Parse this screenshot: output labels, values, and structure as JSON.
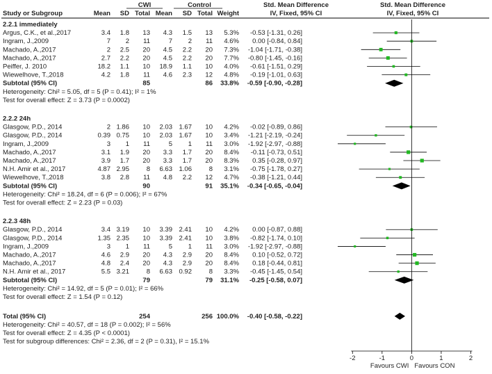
{
  "chart_data": {
    "type": "forest",
    "header": {
      "group_cwi": "CWI",
      "group_control": "Control",
      "effect_title": "Std. Mean Difference",
      "method": "IV, Fixed, 95% CI",
      "method_plot": "IV, Fixed, 95% CI",
      "cols": [
        "Study or Subgroup",
        "Mean",
        "SD",
        "Total",
        "Mean",
        "SD",
        "Total",
        "Weight"
      ]
    },
    "subgroups": [
      {
        "title": "2.2.1 immediately",
        "studies": [
          {
            "study": "Argus, C.K., et al.,2017",
            "cwi_mean": "3.4",
            "cwi_sd": "1.8",
            "cwi_n": "13",
            "ctl_mean": "4.3",
            "ctl_sd": "1.5",
            "ctl_n": "13",
            "weight": "5.3%",
            "ci_text": "-0.53 [-1.31, 0.26]",
            "smd": -0.53,
            "lo": -1.31,
            "hi": 0.26
          },
          {
            "study": "Ingram, J.,2009",
            "cwi_mean": "7",
            "cwi_sd": "2",
            "cwi_n": "11",
            "ctl_mean": "7",
            "ctl_sd": "2",
            "ctl_n": "11",
            "weight": "4.6%",
            "ci_text": "0.00 [-0.84, 0.84]",
            "smd": 0.0,
            "lo": -0.84,
            "hi": 0.84
          },
          {
            "study": "Machado, A.,2017",
            "cwi_mean": "2",
            "cwi_sd": "2.5",
            "cwi_n": "20",
            "ctl_mean": "4.5",
            "ctl_sd": "2.2",
            "ctl_n": "20",
            "weight": "7.3%",
            "ci_text": "-1.04 [-1.71, -0.38]",
            "smd": -1.04,
            "lo": -1.71,
            "hi": -0.38
          },
          {
            "study": "Machado, A.,2017",
            "cwi_mean": "2.7",
            "cwi_sd": "2.2",
            "cwi_n": "20",
            "ctl_mean": "4.5",
            "ctl_sd": "2.2",
            "ctl_n": "20",
            "weight": "7.7%",
            "ci_text": "-0.80 [-1.45, -0.16]",
            "smd": -0.8,
            "lo": -1.45,
            "hi": -0.16
          },
          {
            "study": "Peiffer, J. 2010",
            "cwi_mean": "18.2",
            "cwi_sd": "1.1",
            "cwi_n": "10",
            "ctl_mean": "18.9",
            "ctl_sd": "1.1",
            "ctl_n": "10",
            "weight": "4.0%",
            "ci_text": "-0.61 [-1.51, 0.29]",
            "smd": -0.61,
            "lo": -1.51,
            "hi": 0.29
          },
          {
            "study": "Wiewelhove, T.,2018",
            "cwi_mean": "4.2",
            "cwi_sd": "1.8",
            "cwi_n": "11",
            "ctl_mean": "4.6",
            "ctl_sd": "2.3",
            "ctl_n": "12",
            "weight": "4.8%",
            "ci_text": "-0.19 [-1.01, 0.63]",
            "smd": -0.19,
            "lo": -1.01,
            "hi": 0.63
          }
        ],
        "subtotal": {
          "label": "Subtotal (95% CI)",
          "cwi_n": "85",
          "ctl_n": "86",
          "weight": "33.8%",
          "ci_text": "-0.59 [-0.90, -0.28]",
          "smd": -0.59,
          "lo": -0.9,
          "hi": -0.28
        },
        "heterogeneity": "Heterogeneity: Chi² = 5.05, df = 5 (P = 0.41); I² = 1%",
        "overall_test": "Test for overall effect: Z = 3.73 (P = 0.0002)"
      },
      {
        "title": "2.2.2 24h",
        "studies": [
          {
            "study": "Glasgow, P.D., 2014",
            "cwi_mean": "2",
            "cwi_sd": "1.86",
            "cwi_n": "10",
            "ctl_mean": "2.03",
            "ctl_sd": "1.67",
            "ctl_n": "10",
            "weight": "4.2%",
            "ci_text": "-0.02 [-0.89, 0.86]",
            "smd": -0.02,
            "lo": -0.89,
            "hi": 0.86
          },
          {
            "study": "Glasgow, P.D., 2014",
            "cwi_mean": "0.39",
            "cwi_sd": "0.75",
            "cwi_n": "10",
            "ctl_mean": "2.03",
            "ctl_sd": "1.67",
            "ctl_n": "10",
            "weight": "3.4%",
            "ci_text": "-1.21 [-2.19, -0.24]",
            "smd": -1.21,
            "lo": -2.19,
            "hi": -0.24
          },
          {
            "study": "Ingram, J.,2009",
            "cwi_mean": "3",
            "cwi_sd": "1",
            "cwi_n": "11",
            "ctl_mean": "5",
            "ctl_sd": "1",
            "ctl_n": "11",
            "weight": "3.0%",
            "ci_text": "-1.92 [-2.97, -0.88]",
            "smd": -1.92,
            "lo": -2.97,
            "hi": -0.88
          },
          {
            "study": "Machado, A.,2017",
            "cwi_mean": "3.1",
            "cwi_sd": "1.9",
            "cwi_n": "20",
            "ctl_mean": "3.3",
            "ctl_sd": "1.7",
            "ctl_n": "20",
            "weight": "8.4%",
            "ci_text": "-0.11 [-0.73, 0.51]",
            "smd": -0.11,
            "lo": -0.73,
            "hi": 0.51
          },
          {
            "study": "Machado, A.,2017",
            "cwi_mean": "3.9",
            "cwi_sd": "1.7",
            "cwi_n": "20",
            "ctl_mean": "3.3",
            "ctl_sd": "1.7",
            "ctl_n": "20",
            "weight": "8.3%",
            "ci_text": "0.35 [-0.28, 0.97]",
            "smd": 0.35,
            "lo": -0.28,
            "hi": 0.97
          },
          {
            "study": "N.H. Amir et al., 2017",
            "cwi_mean": "4.87",
            "cwi_sd": "2.95",
            "cwi_n": "8",
            "ctl_mean": "6.63",
            "ctl_sd": "1.06",
            "ctl_n": "8",
            "weight": "3.1%",
            "ci_text": "-0.75 [-1.78, 0.27]",
            "smd": -0.75,
            "lo": -1.78,
            "hi": 0.27
          },
          {
            "study": "Wiewelhove, T.,2018",
            "cwi_mean": "3.8",
            "cwi_sd": "2.8",
            "cwi_n": "11",
            "ctl_mean": "4.8",
            "ctl_sd": "2.2",
            "ctl_n": "12",
            "weight": "4.7%",
            "ci_text": "-0.38 [-1.21, 0.44]",
            "smd": -0.38,
            "lo": -1.21,
            "hi": 0.44
          }
        ],
        "subtotal": {
          "label": "Subtotal (95% CI)",
          "cwi_n": "90",
          "ctl_n": "91",
          "weight": "35.1%",
          "ci_text": "-0.34 [-0.65, -0.04]",
          "smd": -0.34,
          "lo": -0.65,
          "hi": -0.04
        },
        "heterogeneity": "Heterogeneity: Chi² = 18.24, df = 6 (P = 0.006); I² = 67%",
        "overall_test": "Test for overall effect: Z = 2.23 (P = 0.03)"
      },
      {
        "title": "2.2.3 48h",
        "studies": [
          {
            "study": "Glasgow, P.D., 2014",
            "cwi_mean": "3.4",
            "cwi_sd": "3.19",
            "cwi_n": "10",
            "ctl_mean": "3.39",
            "ctl_sd": "2.41",
            "ctl_n": "10",
            "weight": "4.2%",
            "ci_text": "0.00 [-0.87, 0.88]",
            "smd": 0.0,
            "lo": -0.87,
            "hi": 0.88
          },
          {
            "study": "Glasgow, P.D., 2014",
            "cwi_mean": "1.35",
            "cwi_sd": "2.35",
            "cwi_n": "10",
            "ctl_mean": "3.39",
            "ctl_sd": "2.41",
            "ctl_n": "10",
            "weight": "3.8%",
            "ci_text": "-0.82 [-1.74, 0.10]",
            "smd": -0.82,
            "lo": -1.74,
            "hi": 0.1
          },
          {
            "study": "Ingram, J.,2009",
            "cwi_mean": "3",
            "cwi_sd": "1",
            "cwi_n": "11",
            "ctl_mean": "5",
            "ctl_sd": "1",
            "ctl_n": "11",
            "weight": "3.0%",
            "ci_text": "-1.92 [-2.97, -0.88]",
            "smd": -1.92,
            "lo": -2.97,
            "hi": -0.88
          },
          {
            "study": "Machado, A.,2017",
            "cwi_mean": "4.6",
            "cwi_sd": "2.9",
            "cwi_n": "20",
            "ctl_mean": "4.3",
            "ctl_sd": "2.9",
            "ctl_n": "20",
            "weight": "8.4%",
            "ci_text": "0.10 [-0.52, 0.72]",
            "smd": 0.1,
            "lo": -0.52,
            "hi": 0.72
          },
          {
            "study": "Machado, A.,2017",
            "cwi_mean": "4.8",
            "cwi_sd": "2.4",
            "cwi_n": "20",
            "ctl_mean": "4.3",
            "ctl_sd": "2.9",
            "ctl_n": "20",
            "weight": "8.4%",
            "ci_text": "0.18 [-0.44, 0.81]",
            "smd": 0.18,
            "lo": -0.44,
            "hi": 0.81
          },
          {
            "study": "N.H. Amir et al., 2017",
            "cwi_mean": "5.5",
            "cwi_sd": "3.21",
            "cwi_n": "8",
            "ctl_mean": "6.63",
            "ctl_sd": "0.92",
            "ctl_n": "8",
            "weight": "3.3%",
            "ci_text": "-0.45 [-1.45, 0.54]",
            "smd": -0.45,
            "lo": -1.45,
            "hi": 0.54
          }
        ],
        "subtotal": {
          "label": "Subtotal (95% CI)",
          "cwi_n": "79",
          "ctl_n": "79",
          "weight": "31.1%",
          "ci_text": "-0.25 [-0.58, 0.07]",
          "smd": -0.25,
          "lo": -0.58,
          "hi": 0.07
        },
        "heterogeneity": "Heterogeneity: Chi² = 14.92, df = 5 (P = 0.01); I² = 66%",
        "overall_test": "Test for overall effect: Z = 1.54 (P = 0.12)"
      }
    ],
    "total": {
      "label": "Total (95% CI)",
      "cwi_n": "254",
      "ctl_n": "256",
      "weight": "100.0%",
      "ci_text": "-0.40 [-0.58, -0.22]",
      "smd": -0.4,
      "lo": -0.58,
      "hi": -0.22
    },
    "total_heterogeneity": "Heterogeneity: Chi² = 40.57, df = 18 (P = 0.002); I² = 56%",
    "total_overall_test": "Test for overall effect: Z = 4.35 (P < 0.0001)",
    "subgroup_differences": "Test for subgroup differences: Chi² = 2.36, df = 2 (P = 0.31), I² = 15.1%",
    "axis": {
      "xlim": [
        -2.5,
        2.6
      ],
      "ticks": [
        -2,
        -1,
        0,
        1,
        2
      ],
      "tick_labels": [
        "-2",
        "-1",
        "0",
        "1",
        "2"
      ]
    },
    "favours_left": "Favours CWI",
    "favours_right": "Favours CON",
    "colors": {
      "text": "#222222",
      "marker": "#22b822",
      "diamond": "#000000",
      "line": "#000000"
    }
  }
}
